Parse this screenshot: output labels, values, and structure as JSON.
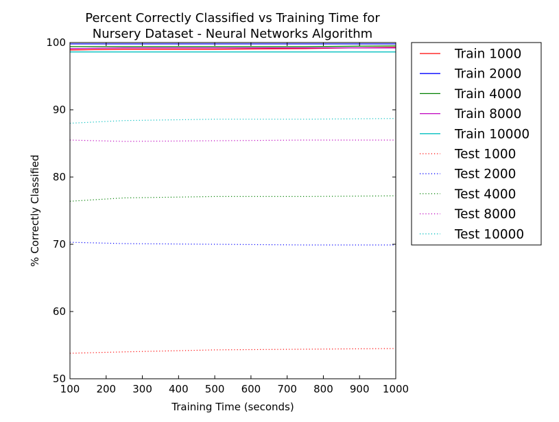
{
  "chart_data": {
    "type": "line",
    "title_lines": [
      "Percent Correctly Classified vs Training Time for",
      "Nursery Dataset - Neural Networks Algorithm"
    ],
    "xlabel": "Training Time (seconds)",
    "ylabel": "% Correctly Classified",
    "xlim": [
      100,
      1000
    ],
    "ylim": [
      50,
      100
    ],
    "xticks": [
      100,
      200,
      300,
      400,
      500,
      600,
      700,
      800,
      900,
      1000
    ],
    "yticks": [
      50,
      60,
      70,
      80,
      90,
      100
    ],
    "grid": false,
    "legend_position": "outside-right",
    "x": [
      100,
      250,
      500,
      750,
      1000
    ],
    "series": [
      {
        "name": "Train 1000",
        "color": "#ff0000",
        "style": "solid",
        "values": [
          98.9,
          99.0,
          99.0,
          99.1,
          99.3
        ]
      },
      {
        "name": "Train 2000",
        "color": "#0000ff",
        "style": "solid",
        "values": [
          99.8,
          99.8,
          99.8,
          99.8,
          99.8
        ]
      },
      {
        "name": "Train 4000",
        "color": "#008000",
        "style": "solid",
        "values": [
          99.4,
          99.4,
          99.4,
          99.4,
          99.5
        ]
      },
      {
        "name": "Train 8000",
        "color": "#bf00bf",
        "style": "solid",
        "values": [
          99.1,
          99.2,
          99.2,
          99.2,
          99.2
        ]
      },
      {
        "name": "Train 10000",
        "color": "#00bfbf",
        "style": "solid",
        "values": [
          98.6,
          98.6,
          98.6,
          98.6,
          98.6
        ]
      },
      {
        "name": "Test 1000",
        "color": "#ff0000",
        "style": "dotted",
        "values": [
          53.8,
          54.0,
          54.3,
          54.4,
          54.5
        ]
      },
      {
        "name": "Test 2000",
        "color": "#0000ff",
        "style": "dotted",
        "values": [
          70.3,
          70.1,
          70.0,
          69.9,
          69.9
        ]
      },
      {
        "name": "Test 4000",
        "color": "#008000",
        "style": "dotted",
        "values": [
          76.4,
          76.9,
          77.1,
          77.1,
          77.2
        ]
      },
      {
        "name": "Test 8000",
        "color": "#bf00bf",
        "style": "dotted",
        "values": [
          85.5,
          85.3,
          85.4,
          85.5,
          85.5
        ]
      },
      {
        "name": "Test 10000",
        "color": "#00bfbf",
        "style": "dotted",
        "values": [
          88.0,
          88.4,
          88.6,
          88.6,
          88.7
        ]
      }
    ]
  }
}
